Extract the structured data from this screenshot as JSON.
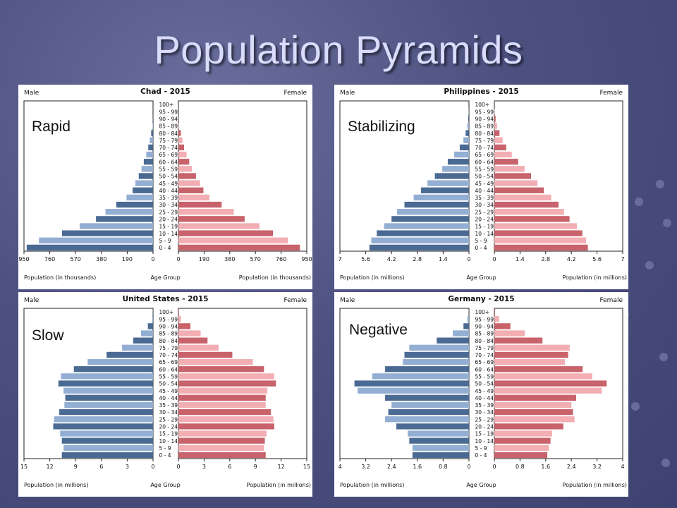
{
  "slide": {
    "title": "Population Pyramids"
  },
  "panels": [
    {
      "label": "Rapid"
    },
    {
      "label": "Stabilizing"
    },
    {
      "label": "Slow"
    },
    {
      "label": "Negative"
    }
  ],
  "colors": {
    "male_dark": "#4a6a93",
    "male_light": "#93aed3",
    "female_dark": "#c8626b",
    "female_light": "#f2aeb3"
  },
  "chart_data": [
    {
      "type": "bar",
      "title": "Chad - 2015",
      "left_label": "Male",
      "right_label": "Female",
      "xlabel_left": "Population (in thousands)",
      "xlabel_center": "Age Group",
      "xlabel_right": "Population (in thousands)",
      "xmax": 950,
      "ticks": [
        "950",
        "760",
        "570",
        "380",
        "190",
        "0"
      ],
      "categories": [
        "100+",
        "95 - 99",
        "90 - 94",
        "85 - 89",
        "80 - 84",
        "75 - 79",
        "70 - 74",
        "65 - 69",
        "60 - 64",
        "55 - 59",
        "50 - 54",
        "45 - 49",
        "40 - 44",
        "35 - 39",
        "30 - 34",
        "25 - 29",
        "20 - 24",
        "15 - 19",
        "10 - 14",
        "5 - 9",
        "0 - 4"
      ],
      "series": [
        {
          "name": "Male",
          "values": [
            0,
            0,
            1,
            3,
            14,
            24,
            35,
            50,
            68,
            85,
            105,
            130,
            150,
            195,
            270,
            350,
            420,
            540,
            670,
            840,
            930
          ]
        },
        {
          "name": "Female",
          "values": [
            0,
            0,
            1,
            4,
            18,
            30,
            42,
            60,
            80,
            100,
            130,
            160,
            185,
            230,
            320,
            410,
            490,
            600,
            700,
            810,
            900
          ]
        }
      ]
    },
    {
      "type": "bar",
      "title": "Philippines - 2015",
      "left_label": "Male",
      "right_label": "Female",
      "xlabel_left": "Population (in millions)",
      "xlabel_center": "Age Group",
      "xlabel_right": "Population (in millions)",
      "xmax": 7,
      "ticks": [
        "7",
        "5.6",
        "4.2",
        "2.8",
        "1.4",
        "0"
      ],
      "categories": [
        "100+",
        "95 - 99",
        "90 - 94",
        "85 - 89",
        "80 - 84",
        "75 - 79",
        "70 - 74",
        "65 - 69",
        "60 - 64",
        "55 - 59",
        "50 - 54",
        "45 - 49",
        "40 - 44",
        "35 - 39",
        "30 - 34",
        "25 - 29",
        "20 - 24",
        "15 - 19",
        "10 - 14",
        "5 - 9",
        "0 - 4"
      ],
      "series": [
        {
          "name": "Male",
          "values": [
            0,
            0.01,
            0.04,
            0.09,
            0.18,
            0.3,
            0.5,
            0.8,
            1.15,
            1.45,
            1.85,
            2.25,
            2.6,
            3.0,
            3.5,
            3.9,
            4.2,
            4.6,
            5.0,
            5.3,
            5.4
          ]
        },
        {
          "name": "Female",
          "values": [
            0,
            0.02,
            0.07,
            0.15,
            0.28,
            0.45,
            0.65,
            0.95,
            1.3,
            1.65,
            2.0,
            2.35,
            2.7,
            3.1,
            3.5,
            3.8,
            4.1,
            4.5,
            4.8,
            5.0,
            5.1
          ]
        }
      ]
    },
    {
      "type": "bar",
      "title": "United States - 2015",
      "left_label": "Male",
      "right_label": "Female",
      "xlabel_left": "Population (in millions)",
      "xlabel_center": "Age Group",
      "xlabel_right": "Population (in millions)",
      "xmax": 15,
      "ticks": [
        "15",
        "12",
        "9",
        "6",
        "3",
        "0"
      ],
      "categories": [
        "100+",
        "95 - 99",
        "90 - 94",
        "85 - 89",
        "80 - 84",
        "75 - 79",
        "70 - 74",
        "65 - 69",
        "60 - 64",
        "55 - 59",
        "50 - 54",
        "45 - 49",
        "40 - 44",
        "35 - 39",
        "30 - 34",
        "25 - 29",
        "20 - 24",
        "15 - 19",
        "10 - 14",
        "5 - 9",
        "0 - 4"
      ],
      "series": [
        {
          "name": "Male",
          "values": [
            0.02,
            0.1,
            0.6,
            1.4,
            2.3,
            3.6,
            5.4,
            7.6,
            9.2,
            10.7,
            11.0,
            10.4,
            10.2,
            10.3,
            10.9,
            11.5,
            11.6,
            10.8,
            10.6,
            10.4,
            10.6
          ]
        },
        {
          "name": "Female",
          "values": [
            0.06,
            0.3,
            1.4,
            2.6,
            3.4,
            4.7,
            6.3,
            8.7,
            10.0,
            11.2,
            11.4,
            10.4,
            10.2,
            10.2,
            10.8,
            11.1,
            11.2,
            10.3,
            10.1,
            10.0,
            10.2
          ]
        }
      ]
    },
    {
      "type": "bar",
      "title": "Germany - 2015",
      "left_label": "Male",
      "right_label": "Female",
      "xlabel_left": "Population (in millions)",
      "xlabel_center": "Age Group",
      "xlabel_right": "Population (in millions)",
      "xmax": 4,
      "ticks": [
        "4",
        "3.2",
        "2.4",
        "1.6",
        "0.8",
        "0"
      ],
      "categories": [
        "100+",
        "95 - 99",
        "90 - 94",
        "85 - 89",
        "80 - 84",
        "75 - 79",
        "70 - 74",
        "65 - 69",
        "60 - 64",
        "55 - 59",
        "50 - 54",
        "45 - 49",
        "40 - 44",
        "35 - 39",
        "30 - 34",
        "25 - 29",
        "20 - 24",
        "15 - 19",
        "10 - 14",
        "5 - 9",
        "0 - 4"
      ],
      "series": [
        {
          "name": "Male",
          "values": [
            0.005,
            0.05,
            0.17,
            0.5,
            1.0,
            1.85,
            2.0,
            2.05,
            2.6,
            3.0,
            3.55,
            3.45,
            2.6,
            2.4,
            2.5,
            2.6,
            2.25,
            1.9,
            1.85,
            1.75,
            1.75
          ]
        },
        {
          "name": "Female",
          "values": [
            0.02,
            0.15,
            0.5,
            0.95,
            1.5,
            2.35,
            2.3,
            2.2,
            2.75,
            3.05,
            3.5,
            3.35,
            2.55,
            2.4,
            2.45,
            2.5,
            2.15,
            1.8,
            1.75,
            1.7,
            1.65
          ]
        }
      ]
    }
  ]
}
